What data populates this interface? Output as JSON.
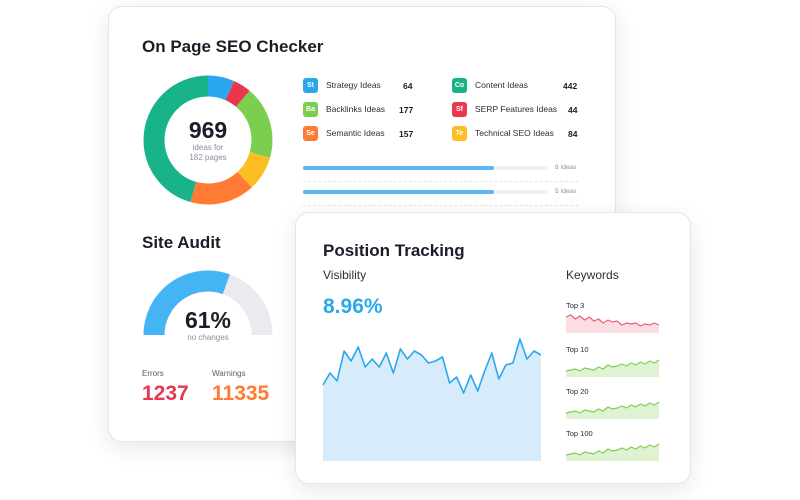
{
  "seo_checker": {
    "title": "On Page SEO Checker",
    "total": "969",
    "total_sub_1": "ideas for",
    "total_sub_2": "182 pages",
    "ideas": [
      {
        "badge": "St",
        "label": "Strategy Ideas",
        "value": "64",
        "color": "#2aa7ee"
      },
      {
        "badge": "Ba",
        "label": "Backlinks Ideas",
        "value": "177",
        "color": "#7ccf4e"
      },
      {
        "badge": "Se",
        "label": "Semantic Ideas",
        "value": "157",
        "color": "#ff7a32"
      },
      {
        "badge": "Co",
        "label": "Content Ideas",
        "value": "442",
        "color": "#19b38a"
      },
      {
        "badge": "Sf",
        "label": "SERP Features Ideas",
        "value": "44",
        "color": "#e8374f"
      },
      {
        "badge": "Te",
        "label": "Technical SEO Ideas",
        "value": "84",
        "color": "#fbbf24"
      }
    ],
    "progress": [
      {
        "label": "8 Ideas",
        "fill_fraction": 0.78
      },
      {
        "label": "5 Ideas",
        "fill_fraction": 0.78
      }
    ]
  },
  "site_audit": {
    "title": "Site Audit",
    "percent": "61%",
    "percent_value": 61,
    "sub": "no changes",
    "errors_label": "Errors",
    "errors_value": "1237",
    "warnings_label": "Warnings",
    "warnings_value": "11335",
    "colors": {
      "gauge": "#45b4f5",
      "track": "#e9ebf0",
      "errors": "#e8374f",
      "warnings": "#ff7a32"
    }
  },
  "position_tracking": {
    "title": "Position Tracking",
    "visibility_label": "Visibility",
    "visibility_value": "8.96%",
    "keywords_label": "Keywords",
    "keyword_groups": [
      {
        "label": "Top 3",
        "trend": "down",
        "color": "#e8627a",
        "fill": "#fbdde2"
      },
      {
        "label": "Top 10",
        "trend": "up",
        "color": "#7ccf4e",
        "fill": "#dff3d2"
      },
      {
        "label": "Top 20",
        "trend": "up",
        "color": "#7ccf4e",
        "fill": "#dff3d2"
      },
      {
        "label": "Top 100",
        "trend": "up",
        "color": "#7ccf4e",
        "fill": "#dff3d2"
      }
    ],
    "colors": {
      "accent": "#2aa7ee",
      "area": "#d6ecfb"
    }
  }
}
